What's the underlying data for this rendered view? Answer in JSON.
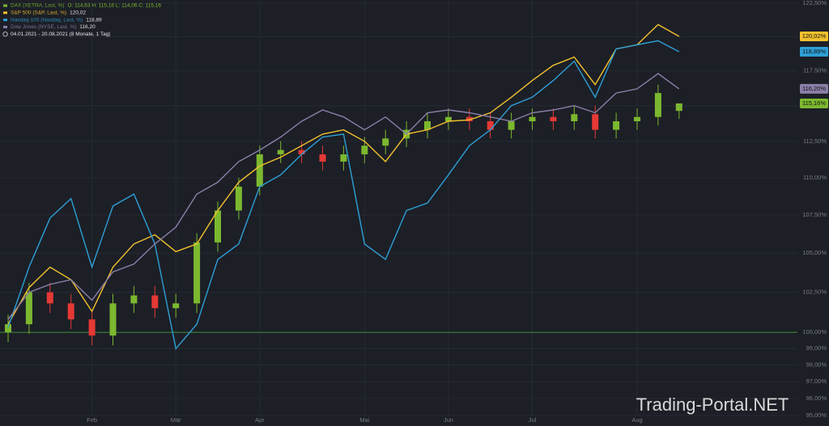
{
  "chart_data": {
    "type": "candlestick",
    "legend_period": "04.01.2021 - 20.08.2021  (8 Monate, 1 Tag)",
    "watermark": "Trading-Portal.NET",
    "categories": [
      null,
      null,
      null,
      null,
      "Feb",
      null,
      null,
      null,
      "Mär",
      null,
      null,
      null,
      "Apr",
      null,
      null,
      null,
      null,
      "Mai",
      null,
      null,
      null,
      "Jun",
      null,
      null,
      null,
      "Jul",
      null,
      null,
      null,
      null,
      "Aug",
      null,
      null
    ],
    "log_y": true,
    "grid": true,
    "baseline": 100,
    "baseline_color": "#3f8f3a",
    "ylim": [
      95,
      122.5
    ],
    "yticks": [
      {
        "value": 95,
        "label": "95,00%"
      },
      {
        "value": 96,
        "label": "96,00%"
      },
      {
        "value": 97,
        "label": "97,00%"
      },
      {
        "value": 98,
        "label": "98,00%"
      },
      {
        "value": 99,
        "label": "99,00%"
      },
      {
        "value": 100,
        "label": "100,00%"
      },
      {
        "value": 102.5,
        "label": "102,50%"
      },
      {
        "value": 105,
        "label": "105,00%"
      },
      {
        "value": 107.5,
        "label": "107,50%"
      },
      {
        "value": 110,
        "label": "110,00%"
      },
      {
        "value": 112.5,
        "label": "112,50%"
      },
      {
        "value": 115,
        "label": "115,00%"
      },
      {
        "value": 117.5,
        "label": "117,50%"
      },
      {
        "value": 120,
        "label": "120,00%"
      },
      {
        "value": 122.5,
        "label": "122,50%"
      }
    ],
    "series": [
      {
        "name": "DAX (XETRA, Last, %)",
        "type": "candlestick",
        "color": "#7cb82f",
        "color_down": "#e53935",
        "legend_value": "O: 114,63  H: 115,16  L: 114,06  C: 115,16",
        "open": [
          100.0,
          100.5,
          102.5,
          101.8,
          100.8,
          99.8,
          101.8,
          102.3,
          101.5,
          101.8,
          105.7,
          107.8,
          109.4,
          111.6,
          111.9,
          111.6,
          111.1,
          111.6,
          112.2,
          112.7,
          113.3,
          113.9,
          114.2,
          113.9,
          113.3,
          113.9,
          114.2,
          113.9,
          114.4,
          113.3,
          113.9,
          114.2,
          114.63
        ],
        "high": [
          101.1,
          103.1,
          103.1,
          102.4,
          101.4,
          102.4,
          102.9,
          102.9,
          102.4,
          106.3,
          108.4,
          110.0,
          112.2,
          112.5,
          112.5,
          112.2,
          112.2,
          112.8,
          113.3,
          113.9,
          114.5,
          114.8,
          114.8,
          114.5,
          114.5,
          114.8,
          114.8,
          115.0,
          115.0,
          114.5,
          114.8,
          116.5,
          115.16
        ],
        "low": [
          99.4,
          99.9,
          101.2,
          100.2,
          99.2,
          99.2,
          101.2,
          100.9,
          100.9,
          101.2,
          105.1,
          107.2,
          108.8,
          111.0,
          111.0,
          110.5,
          110.5,
          111.0,
          111.6,
          112.1,
          112.7,
          113.3,
          113.3,
          112.7,
          112.7,
          113.3,
          113.3,
          113.3,
          112.7,
          112.7,
          113.3,
          113.6,
          114.06
        ],
        "close": [
          100.5,
          102.5,
          101.8,
          100.8,
          99.8,
          101.8,
          102.3,
          101.5,
          101.8,
          105.7,
          107.8,
          109.4,
          111.6,
          111.9,
          111.6,
          111.1,
          111.6,
          112.2,
          112.7,
          113.3,
          113.9,
          114.2,
          113.9,
          113.3,
          113.9,
          114.2,
          113.9,
          114.4,
          113.3,
          113.9,
          114.2,
          115.9,
          115.16
        ],
        "value_labels": [
          null,
          null,
          null,
          null,
          null,
          null,
          null,
          null,
          null,
          null,
          null,
          null,
          null,
          null,
          null,
          null,
          null,
          null,
          null,
          null,
          null,
          null,
          null,
          null,
          null,
          null,
          null,
          null,
          null,
          null,
          null,
          null,
          "115,16%"
        ]
      },
      {
        "name": "S&P 500 (S&P, Last, %)",
        "type": "line",
        "color": "#f2c12e",
        "legend_value": "120,02",
        "values": [
          100.5,
          102.8,
          104.1,
          103.3,
          101.3,
          104.1,
          105.6,
          106.2,
          105.1,
          105.6,
          107.8,
          109.7,
          110.8,
          111.4,
          112.2,
          113.0,
          113.3,
          112.5,
          111.1,
          113.0,
          113.3,
          113.9,
          114.0,
          114.5,
          115.6,
          116.8,
          117.9,
          118.5,
          116.5,
          119.1,
          119.4,
          120.9,
          120.02
        ],
        "value_labels": [
          null,
          null,
          null,
          null,
          null,
          null,
          null,
          null,
          null,
          null,
          null,
          null,
          null,
          null,
          null,
          null,
          null,
          null,
          null,
          null,
          null,
          null,
          null,
          null,
          null,
          null,
          null,
          null,
          null,
          null,
          null,
          null,
          "120,02%"
        ]
      },
      {
        "name": "Nasdaq-100 (Nasdaq, Last, %)",
        "type": "line",
        "color": "#2e9fd6",
        "legend_value": "118,89",
        "values": [
          100.3,
          104.1,
          107.3,
          108.6,
          104.1,
          108.1,
          108.9,
          105.6,
          99.0,
          100.5,
          104.6,
          105.6,
          109.4,
          110.2,
          111.6,
          112.8,
          113.0,
          105.6,
          104.6,
          107.8,
          108.3,
          110.2,
          112.2,
          113.3,
          115.0,
          115.6,
          116.8,
          118.2,
          115.6,
          119.1,
          119.4,
          119.7,
          118.89
        ],
        "value_labels": [
          null,
          null,
          null,
          null,
          null,
          null,
          null,
          null,
          null,
          null,
          null,
          null,
          null,
          null,
          null,
          null,
          null,
          null,
          null,
          null,
          null,
          null,
          null,
          null,
          null,
          null,
          null,
          null,
          null,
          null,
          null,
          null,
          "118,89%"
        ]
      },
      {
        "name": "Dow Jones (NYSE, Last, %)",
        "type": "line",
        "color": "#8a7fa8",
        "legend_value": "116,20",
        "values": [
          100.8,
          102.5,
          103.0,
          103.3,
          102.0,
          103.8,
          104.3,
          105.6,
          106.7,
          108.9,
          109.7,
          111.1,
          111.9,
          112.8,
          113.9,
          114.7,
          114.2,
          113.3,
          114.2,
          113.0,
          114.5,
          114.7,
          114.5,
          114.2,
          113.9,
          114.5,
          114.7,
          115.0,
          114.5,
          115.9,
          116.2,
          117.3,
          116.2
        ],
        "value_labels": [
          null,
          null,
          null,
          null,
          null,
          null,
          null,
          null,
          null,
          null,
          null,
          null,
          null,
          null,
          null,
          null,
          null,
          null,
          null,
          null,
          null,
          null,
          null,
          null,
          null,
          null,
          null,
          null,
          null,
          null,
          null,
          null,
          "116,20%"
        ]
      }
    ]
  }
}
